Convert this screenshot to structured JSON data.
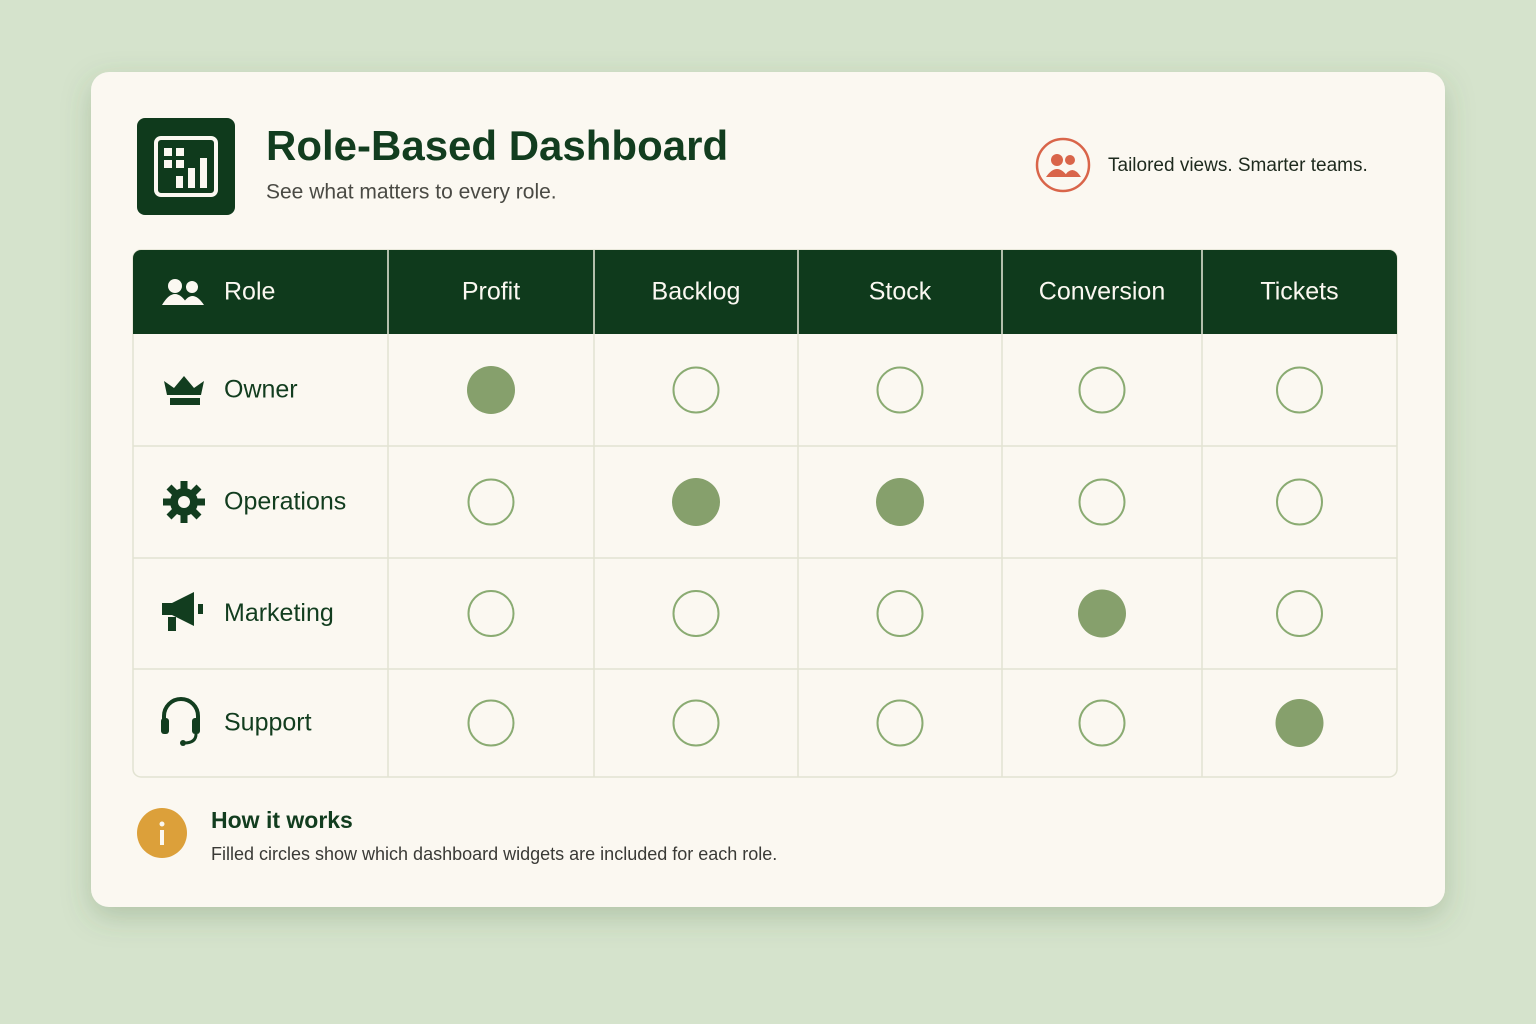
{
  "header": {
    "title": "Role-Based Dashboard",
    "subtitle": "See what matters to every role.",
    "tagline": "Tailored views. Smarter teams."
  },
  "table": {
    "columns": [
      "Role",
      "Profit",
      "Backlog",
      "Stock",
      "Conversion",
      "Tickets"
    ],
    "rows": [
      {
        "role": "Owner",
        "included": [
          true,
          false,
          false,
          false,
          false
        ]
      },
      {
        "role": "Operations",
        "included": [
          false,
          true,
          true,
          false,
          false
        ]
      },
      {
        "role": "Marketing",
        "included": [
          false,
          false,
          false,
          true,
          false
        ]
      },
      {
        "role": "Support",
        "included": [
          false,
          false,
          false,
          false,
          true
        ]
      }
    ]
  },
  "footer": {
    "title": "How it works",
    "text": "Filled circles show which dashboard widgets are included for each role."
  }
}
